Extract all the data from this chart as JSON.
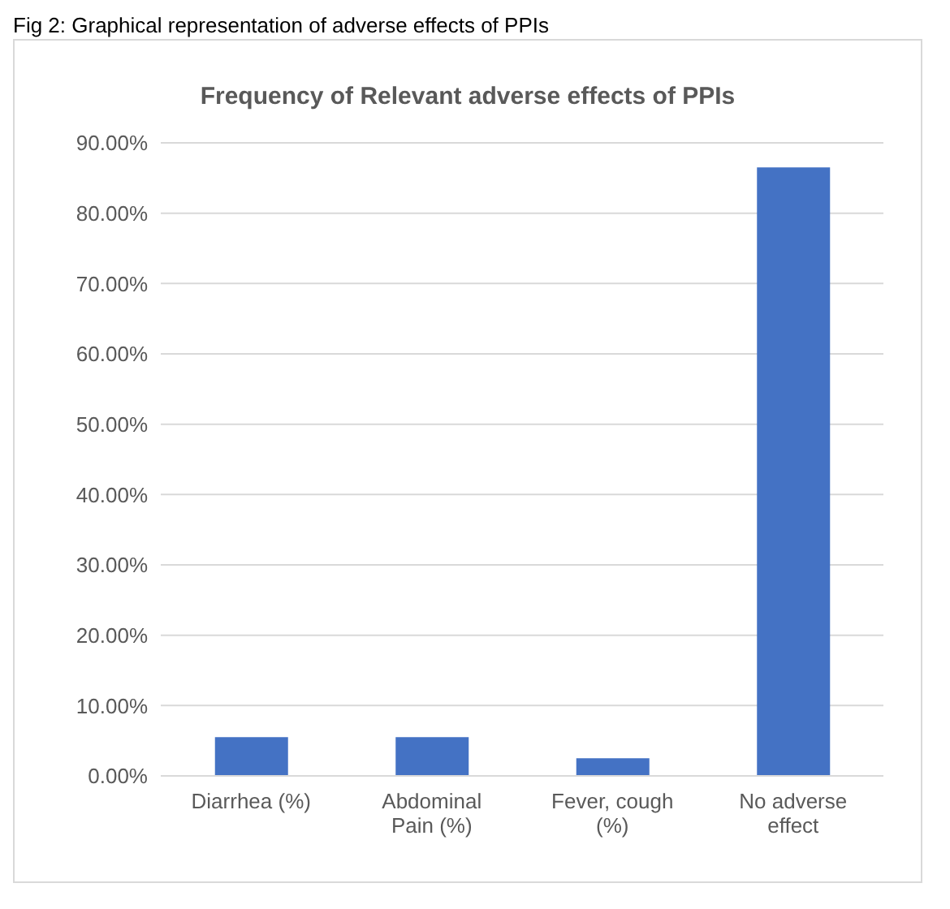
{
  "chart_data": {
    "type": "bar",
    "title": "Frequency of Relevant adverse effects of PPIs",
    "annotations": [
      "Fig 2: Graphical representation of adverse effects of PPIs"
    ],
    "categories": [
      "Diarrhea (%)",
      "Abdominal Pain (%)",
      "Fever, cough (%)",
      "No adverse effect"
    ],
    "values": [
      5.5,
      5.5,
      2.5,
      86.5
    ],
    "color": "#4472c4",
    "ylim": [
      0,
      90
    ],
    "yticks": [
      {
        "value": 0,
        "label": "0.00%"
      },
      {
        "value": 10,
        "label": "10.00%"
      },
      {
        "value": 20,
        "label": "20.00%"
      },
      {
        "value": 30,
        "label": "30.00%"
      },
      {
        "value": 40,
        "label": "40.00%"
      },
      {
        "value": 50,
        "label": "50.00%"
      },
      {
        "value": 60,
        "label": "60.00%"
      },
      {
        "value": 70,
        "label": "70.00%"
      },
      {
        "value": 80,
        "label": "80.00%"
      },
      {
        "value": 90,
        "label": "90.00%"
      }
    ],
    "grid": "y"
  }
}
